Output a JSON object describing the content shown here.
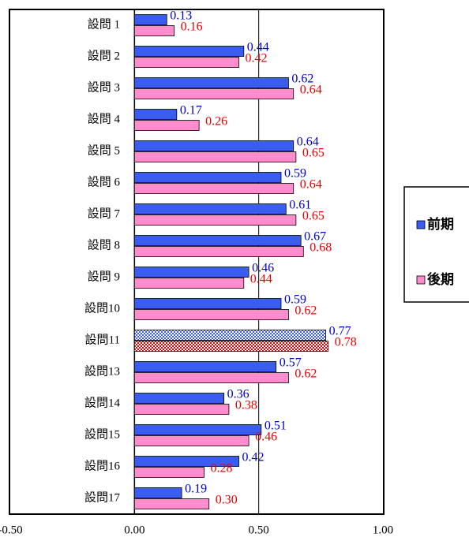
{
  "chart_data": {
    "type": "hbar",
    "categories": [
      "設問 1",
      "設問 2",
      "設問 3",
      "設問 4",
      "設問 5",
      "設問 6",
      "設問 7",
      "設問 8",
      "設問 9",
      "設問10",
      "設問11",
      "設問13",
      "設問14",
      "設問15",
      "設問16",
      "設問17"
    ],
    "series": [
      {
        "name": "前期",
        "color": "#3a5cf2",
        "label_color": "#0000cc",
        "values": [
          0.13,
          0.44,
          0.62,
          0.17,
          0.64,
          0.59,
          0.61,
          0.67,
          0.46,
          0.59,
          0.77,
          0.57,
          0.36,
          0.51,
          0.42,
          0.19
        ],
        "value_labels": [
          "0.13",
          "0.44",
          "0.62",
          "0.17",
          "0.64",
          "0.59",
          "0.61",
          "0.67",
          "0.46",
          "0.59",
          "0.77",
          "0.57",
          "0.36",
          "0.51",
          "0.42",
          "0.19"
        ]
      },
      {
        "name": "後期",
        "color": "#ff8ccc",
        "label_color": "#e60000",
        "values": [
          0.16,
          0.42,
          0.64,
          0.26,
          0.65,
          0.64,
          0.65,
          0.68,
          0.44,
          0.62,
          0.78,
          0.62,
          0.38,
          0.46,
          0.28,
          0.3
        ],
        "value_labels": [
          "0.16",
          "0.42",
          "0.64",
          "0.26",
          "0.65",
          "0.64",
          "0.65",
          "0.68",
          "0.44",
          "0.62",
          "0.78",
          "0.62",
          "0.38",
          "0.46",
          "0.28",
          "0.30"
        ]
      }
    ],
    "patterned": [
      10
    ],
    "xlim": [
      -0.5,
      1.0
    ],
    "xticks": [
      {
        "value": -0.5,
        "label": "-0.50"
      },
      {
        "value": 0,
        "label": "0.00"
      },
      {
        "value": 0.5,
        "label": "0.50"
      },
      {
        "value": 1.0,
        "label": "1.00"
      }
    ],
    "grid": true,
    "legend": "right"
  }
}
